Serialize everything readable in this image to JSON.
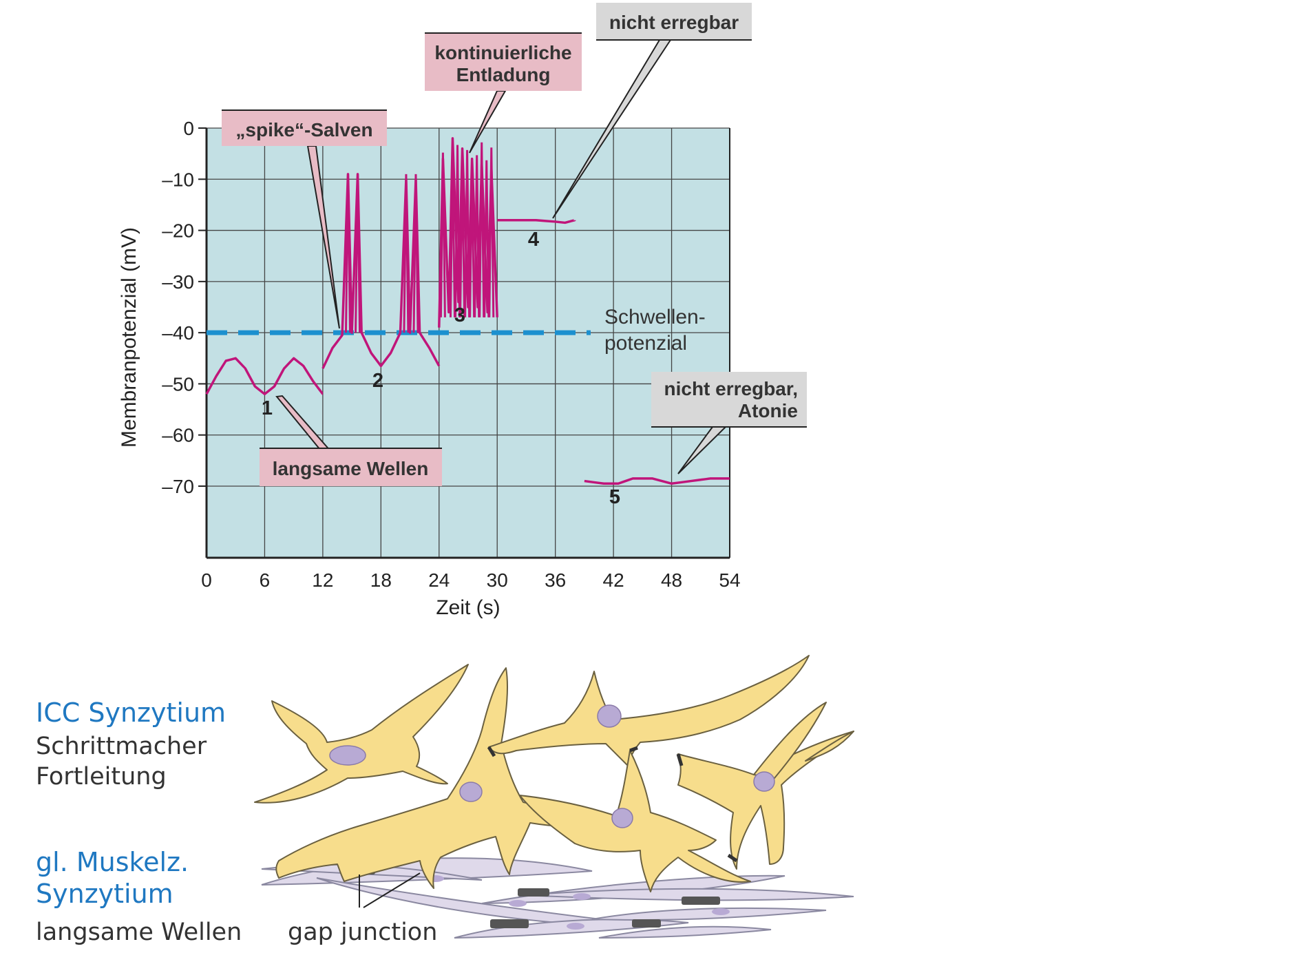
{
  "chart_data": {
    "type": "line",
    "xlabel": "Zeit (s)",
    "ylabel": "Membranpotenzial (mV)",
    "xlim": [
      0,
      54
    ],
    "ylim": [
      -84,
      0
    ],
    "x_ticks": [
      "0",
      "6",
      "12",
      "18",
      "24",
      "30",
      "36",
      "42",
      "48",
      "54"
    ],
    "y_ticks": [
      "0",
      "–10",
      "–20",
      "–30",
      "–40",
      "–50",
      "–60",
      "–70"
    ],
    "threshold": {
      "value": -40,
      "label_line1": "Schwellen-",
      "label_line2": "potenzial"
    },
    "series": [
      {
        "id": "1",
        "label": "1",
        "x": [
          0,
          1,
          2,
          3,
          4,
          5,
          6,
          7,
          8,
          9,
          10,
          11,
          12
        ],
        "y": [
          -52,
          -48.5,
          -45.5,
          -45,
          -47,
          -50.5,
          -52,
          -50.5,
          -47,
          -45,
          -46.5,
          -49.5,
          -52
        ]
      },
      {
        "id": "2",
        "label": "2",
        "x": [
          12,
          13,
          14,
          14.6,
          15,
          15.6,
          16,
          17,
          18,
          19,
          20,
          20.6,
          21,
          21.6,
          22,
          23,
          24
        ],
        "y": [
          -47,
          -43,
          -40.5,
          -9,
          -40,
          -9,
          -40,
          -44,
          -46.5,
          -44,
          -40,
          -10,
          -40,
          -10,
          -40,
          -43,
          -46.5
        ],
        "spikes_at": [
          14.6,
          15.6,
          20.6,
          21.6
        ]
      },
      {
        "id": "3",
        "label": "3",
        "x": [
          24,
          24.4,
          25,
          25.4,
          26,
          26.4,
          27,
          27.4,
          28,
          28.4,
          29,
          29.4,
          30
        ],
        "y": [
          -39,
          -6,
          -36,
          -2,
          -34,
          -4,
          -35,
          -6,
          -35,
          -7,
          -36,
          -8,
          -37
        ],
        "spikes_at": [
          24.4,
          25.4,
          25.9,
          26.4,
          26.9,
          27.4,
          27.9,
          28.4,
          28.9,
          29.4
        ]
      },
      {
        "id": "4",
        "label": "4",
        "x": [
          30,
          32,
          34,
          36,
          37,
          38
        ],
        "y": [
          -18,
          -18,
          -18,
          -18.3,
          -18.5,
          -18
        ]
      },
      {
        "id": "5",
        "label": "5",
        "x": [
          39,
          41,
          42.5,
          44,
          46,
          48,
          50,
          52,
          54
        ],
        "y": [
          -69,
          -69.5,
          -69.5,
          -68.5,
          -68.5,
          -69.5,
          -69,
          -68.5,
          -68.5
        ]
      }
    ],
    "annotations": [
      {
        "id": "langsam",
        "text": "langsame Wellen",
        "target": "1"
      },
      {
        "id": "salven",
        "text": "„spike“-Salven",
        "target": "2"
      },
      {
        "id": "kontinuierlich",
        "line1": "kontinuierliche",
        "line2": "Entladung",
        "target": "3"
      },
      {
        "id": "nicht-erregbar",
        "text": "nicht erregbar",
        "target": "4"
      },
      {
        "id": "atonie",
        "line1": "nicht erregbar,",
        "line2": "Atonie",
        "target": "5"
      }
    ]
  },
  "lower_panel": {
    "icc_title": "ICC Synzytium",
    "icc_line1": "Schrittmacher",
    "icc_line2": "Fortleitung",
    "smc_title_line1": "gl. Muskelz.",
    "smc_title_line2": "Synzytium",
    "smc_line": "langsame Wellen",
    "gap_junction": "gap junction"
  },
  "colors": {
    "plot_background": "#c3e0e4",
    "trace": "#c0157a",
    "threshold": "#1c90cf",
    "callout_pink": "#e8bcc6",
    "callout_gray": "#d8d8d8",
    "icc_cell": "#f7dd8c",
    "smooth_muscle": "#dfd9ea",
    "nucleus": "#b8aad4",
    "side_title": "#1f78c1"
  }
}
